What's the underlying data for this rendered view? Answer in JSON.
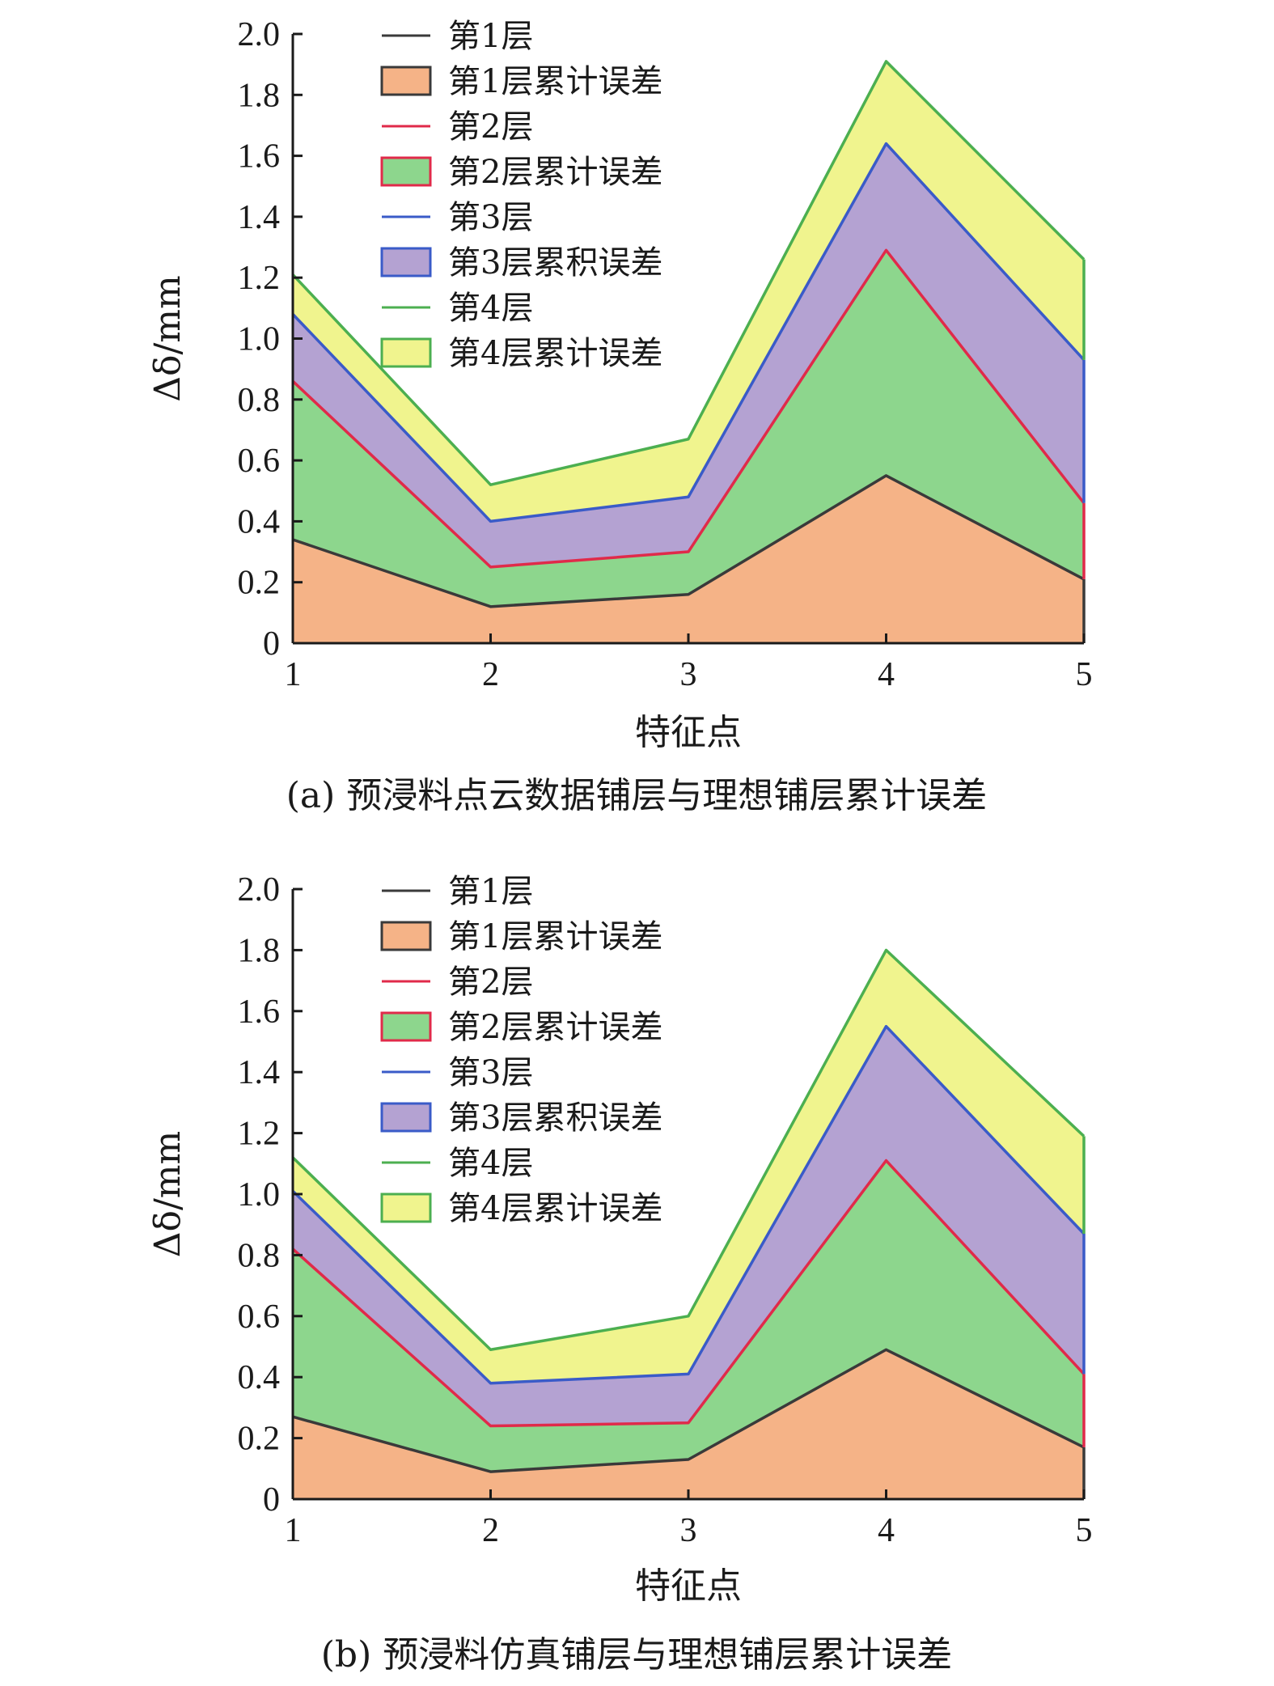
{
  "colors": {
    "layer1_fill": "#F5B387",
    "layer1_line": "#3A3A3A",
    "layer2_fill": "#8DD68D",
    "layer2_line": "#E02A4A",
    "layer3_fill": "#B4A2D2",
    "layer3_line": "#3A5BC8",
    "layer4_fill": "#F0F48E",
    "layer4_line": "#4CAF50"
  },
  "chart_data": [
    {
      "type": "area",
      "stacked": true,
      "caption": "(a) 预浸料点云数据铺层与理想铺层累计误差",
      "xlabel": "特征点",
      "ylabel": "Δδ/mm",
      "x": [
        1,
        2,
        3,
        4,
        5
      ],
      "xticks": [
        "1",
        "2",
        "3",
        "4",
        "5"
      ],
      "yticks": [
        "0",
        "0.2",
        "0.4",
        "0.6",
        "0.8",
        "1.0",
        "1.2",
        "1.4",
        "1.6",
        "1.8",
        "2.0"
      ],
      "xlim": [
        1,
        5
      ],
      "ylim": [
        0,
        2.0
      ],
      "legend_position": "top-left",
      "legend": [
        "第1层",
        "第1层累计误差",
        "第2层",
        "第2层累计误差",
        "第3层",
        "第3层累积误差",
        "第4层",
        "第4层累计误差"
      ],
      "series": [
        {
          "name": "第1层累计误差",
          "values": [
            0.34,
            0.12,
            0.16,
            0.55,
            0.21
          ]
        },
        {
          "name": "第2层累计误差",
          "values": [
            0.86,
            0.25,
            0.3,
            1.29,
            0.46
          ]
        },
        {
          "name": "第3层累积误差",
          "values": [
            1.08,
            0.4,
            0.48,
            1.64,
            0.93
          ]
        },
        {
          "name": "第4层累计误差",
          "values": [
            1.21,
            0.52,
            0.67,
            1.91,
            1.26
          ]
        }
      ]
    },
    {
      "type": "area",
      "stacked": true,
      "caption": "(b) 预浸料仿真铺层与理想铺层累计误差",
      "xlabel": "特征点",
      "ylabel": "Δδ/mm",
      "x": [
        1,
        2,
        3,
        4,
        5
      ],
      "xticks": [
        "1",
        "2",
        "3",
        "4",
        "5"
      ],
      "yticks": [
        "0",
        "0.2",
        "0.4",
        "0.6",
        "0.8",
        "1.0",
        "1.2",
        "1.4",
        "1.6",
        "1.8",
        "2.0"
      ],
      "xlim": [
        1,
        5
      ],
      "ylim": [
        0,
        2.0
      ],
      "legend_position": "top-left",
      "legend": [
        "第1层",
        "第1层累计误差",
        "第2层",
        "第2层累计误差",
        "第3层",
        "第3层累积误差",
        "第4层",
        "第4层累计误差"
      ],
      "series": [
        {
          "name": "第1层累计误差",
          "values": [
            0.27,
            0.09,
            0.13,
            0.49,
            0.17
          ]
        },
        {
          "name": "第2层累计误差",
          "values": [
            0.82,
            0.24,
            0.25,
            1.11,
            0.41
          ]
        },
        {
          "name": "第3层累积误差",
          "values": [
            1.01,
            0.38,
            0.41,
            1.55,
            0.87
          ]
        },
        {
          "name": "第4层累计误差",
          "values": [
            1.12,
            0.49,
            0.6,
            1.8,
            1.19
          ]
        }
      ]
    }
  ]
}
